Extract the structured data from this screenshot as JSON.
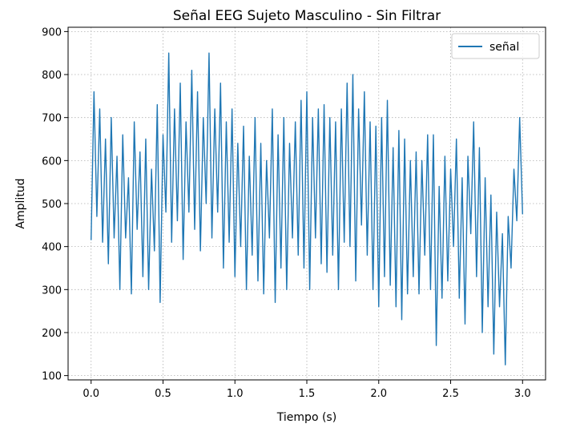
{
  "chart_data": {
    "type": "line",
    "title": "Señal EEG Sujeto Masculino - Sin Filtrar",
    "xlabel": "Tiempo (s)",
    "ylabel": "Amplitud",
    "xlim": [
      -0.16,
      3.16
    ],
    "ylim": [
      90,
      910
    ],
    "xticks": [
      0.0,
      0.5,
      1.0,
      1.5,
      2.0,
      2.5,
      3.0
    ],
    "xtick_labels": [
      "0.0",
      "0.5",
      "1.0",
      "1.5",
      "2.0",
      "2.5",
      "3.0"
    ],
    "yticks": [
      100,
      200,
      300,
      400,
      500,
      600,
      700,
      800,
      900
    ],
    "ytick_labels": [
      "100",
      "200",
      "300",
      "400",
      "500",
      "600",
      "700",
      "800",
      "900"
    ],
    "grid": true,
    "legend_position": "top-right",
    "line_color": "#1f77b4",
    "series": [
      {
        "name": "señal",
        "x": [
          0.0,
          0.02,
          0.04,
          0.06,
          0.08,
          0.1,
          0.12,
          0.14,
          0.16,
          0.18,
          0.2,
          0.22,
          0.24,
          0.26,
          0.28,
          0.3,
          0.32,
          0.34,
          0.36,
          0.38,
          0.4,
          0.42,
          0.44,
          0.46,
          0.48,
          0.5,
          0.52,
          0.54,
          0.56,
          0.58,
          0.6,
          0.62,
          0.64,
          0.66,
          0.68,
          0.7,
          0.72,
          0.74,
          0.76,
          0.78,
          0.8,
          0.82,
          0.84,
          0.86,
          0.88,
          0.9,
          0.92,
          0.94,
          0.96,
          0.98,
          1.0,
          1.02,
          1.04,
          1.06,
          1.08,
          1.1,
          1.12,
          1.14,
          1.16,
          1.18,
          1.2,
          1.22,
          1.24,
          1.26,
          1.28,
          1.3,
          1.32,
          1.34,
          1.36,
          1.38,
          1.4,
          1.42,
          1.44,
          1.46,
          1.48,
          1.5,
          1.52,
          1.54,
          1.56,
          1.58,
          1.6,
          1.62,
          1.64,
          1.66,
          1.68,
          1.7,
          1.72,
          1.74,
          1.76,
          1.78,
          1.8,
          1.82,
          1.84,
          1.86,
          1.88,
          1.9,
          1.92,
          1.94,
          1.96,
          1.98,
          2.0,
          2.02,
          2.04,
          2.06,
          2.08,
          2.1,
          2.12,
          2.14,
          2.16,
          2.18,
          2.2,
          2.22,
          2.24,
          2.26,
          2.28,
          2.3,
          2.32,
          2.34,
          2.36,
          2.38,
          2.4,
          2.42,
          2.44,
          2.46,
          2.48,
          2.5,
          2.52,
          2.54,
          2.56,
          2.58,
          2.6,
          2.62,
          2.64,
          2.66,
          2.68,
          2.7,
          2.72,
          2.74,
          2.76,
          2.78,
          2.8,
          2.82,
          2.84,
          2.86,
          2.88,
          2.9,
          2.92,
          2.94,
          2.96,
          2.98,
          3.0
        ],
        "y": [
          415,
          760,
          470,
          720,
          410,
          650,
          360,
          700,
          420,
          610,
          300,
          660,
          420,
          560,
          290,
          690,
          440,
          620,
          330,
          650,
          300,
          580,
          390,
          730,
          270,
          660,
          480,
          850,
          410,
          720,
          460,
          780,
          370,
          690,
          480,
          810,
          440,
          760,
          390,
          700,
          500,
          850,
          420,
          720,
          480,
          780,
          350,
          690,
          410,
          720,
          330,
          640,
          400,
          680,
          300,
          610,
          380,
          700,
          320,
          640,
          290,
          600,
          420,
          720,
          270,
          660,
          350,
          700,
          300,
          640,
          420,
          690,
          380,
          740,
          350,
          760,
          300,
          700,
          420,
          720,
          360,
          730,
          340,
          700,
          380,
          690,
          300,
          720,
          410,
          780,
          400,
          800,
          320,
          720,
          450,
          760,
          380,
          690,
          300,
          680,
          260,
          700,
          330,
          740,
          310,
          630,
          260,
          670,
          230,
          650,
          290,
          600,
          330,
          620,
          290,
          600,
          380,
          660,
          300,
          660,
          170,
          540,
          280,
          610,
          320,
          580,
          400,
          650,
          280,
          560,
          220,
          610,
          430,
          690,
          330,
          630,
          200,
          560,
          260,
          520,
          150,
          480,
          260,
          430,
          125,
          470,
          350,
          580,
          460,
          700,
          475
        ]
      }
    ]
  }
}
